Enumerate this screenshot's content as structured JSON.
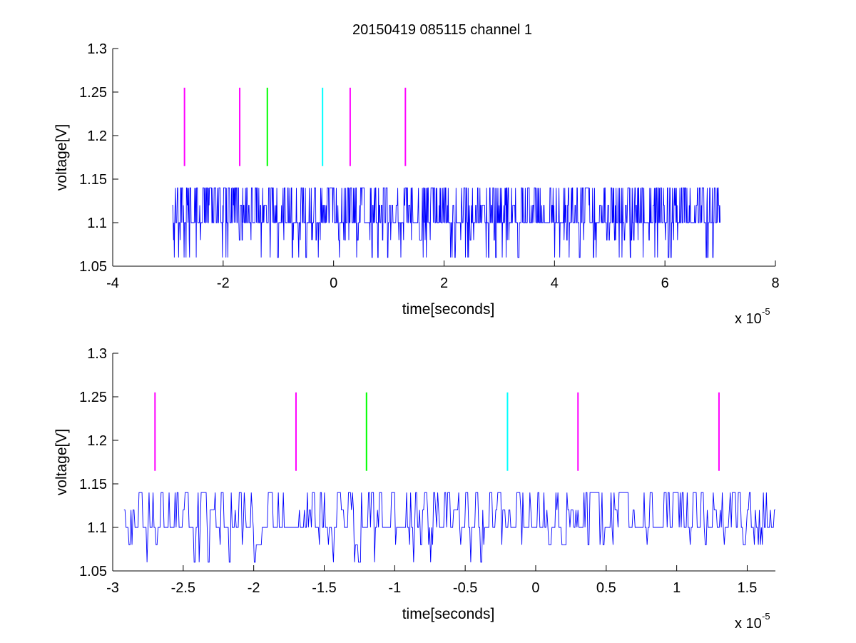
{
  "title": "20150419 085115 channel 1",
  "chart_data": [
    {
      "type": "line",
      "xlabel": "time[seconds]",
      "ylabel": "voltage[V]",
      "x_exponent_label": "x 10",
      "x_exponent": "-5",
      "xlim": [
        -4,
        8
      ],
      "ylim": [
        1.05,
        1.3
      ],
      "x_ticks": [
        -4,
        -2,
        0,
        2,
        4,
        6,
        8
      ],
      "x_tick_labels": [
        "-4",
        "-2",
        "0",
        "2",
        "4",
        "6",
        "8"
      ],
      "y_ticks": [
        1.05,
        1.1,
        1.15,
        1.2,
        1.25,
        1.3
      ],
      "y_tick_labels": [
        "1.05",
        "1.1",
        "1.15",
        "1.2",
        "1.25",
        "1.3"
      ],
      "markers": [
        {
          "x": -2.7,
          "y0": 1.165,
          "y1": 1.255,
          "color": "#ff00ff"
        },
        {
          "x": -1.7,
          "y0": 1.165,
          "y1": 1.255,
          "color": "#ff00ff"
        },
        {
          "x": -1.2,
          "y0": 1.165,
          "y1": 1.255,
          "color": "#00ff00"
        },
        {
          "x": -0.2,
          "y0": 1.165,
          "y1": 1.255,
          "color": "#00ffff"
        },
        {
          "x": 0.3,
          "y0": 1.165,
          "y1": 1.255,
          "color": "#ff00ff"
        },
        {
          "x": 1.3,
          "y0": 1.165,
          "y1": 1.255,
          "color": "#ff00ff"
        }
      ],
      "series": [
        {
          "color": "#0000ff",
          "x_start": -2.92,
          "x_end": 7.0,
          "baseline": 1.1,
          "levels": [
            1.06,
            1.08,
            1.1,
            1.12,
            1.14
          ],
          "seed": 17,
          "samples": 1400
        }
      ]
    },
    {
      "type": "line",
      "xlabel": "time[seconds]",
      "ylabel": "voltage[V]",
      "x_exponent_label": "x 10",
      "x_exponent": "-5",
      "xlim": [
        -3.0,
        1.7
      ],
      "ylim": [
        1.05,
        1.3
      ],
      "x_ticks": [
        -3,
        -2.5,
        -2,
        -1.5,
        -1,
        -0.5,
        0,
        0.5,
        1,
        1.5
      ],
      "x_tick_labels": [
        "-3",
        "-2.5",
        "-2",
        "-1.5",
        "-1",
        "-0.5",
        "0",
        "0.5",
        "1",
        "1.5"
      ],
      "y_ticks": [
        1.05,
        1.1,
        1.15,
        1.2,
        1.25,
        1.3
      ],
      "y_tick_labels": [
        "1.05",
        "1.1",
        "1.15",
        "1.2",
        "1.25",
        "1.3"
      ],
      "markers": [
        {
          "x": -2.7,
          "y0": 1.165,
          "y1": 1.255,
          "color": "#ff00ff"
        },
        {
          "x": -1.7,
          "y0": 1.165,
          "y1": 1.255,
          "color": "#ff00ff"
        },
        {
          "x": -1.2,
          "y0": 1.165,
          "y1": 1.255,
          "color": "#00ff00"
        },
        {
          "x": -0.2,
          "y0": 1.165,
          "y1": 1.255,
          "color": "#00ffff"
        },
        {
          "x": 0.3,
          "y0": 1.165,
          "y1": 1.255,
          "color": "#ff00ff"
        },
        {
          "x": 1.3,
          "y0": 1.165,
          "y1": 1.255,
          "color": "#ff00ff"
        }
      ],
      "series": [
        {
          "color": "#0000ff",
          "x_start": -2.92,
          "x_end": 1.7,
          "baseline": 1.1,
          "levels": [
            1.06,
            1.08,
            1.1,
            1.12,
            1.14
          ],
          "seed": 29,
          "samples": 650
        }
      ]
    }
  ]
}
